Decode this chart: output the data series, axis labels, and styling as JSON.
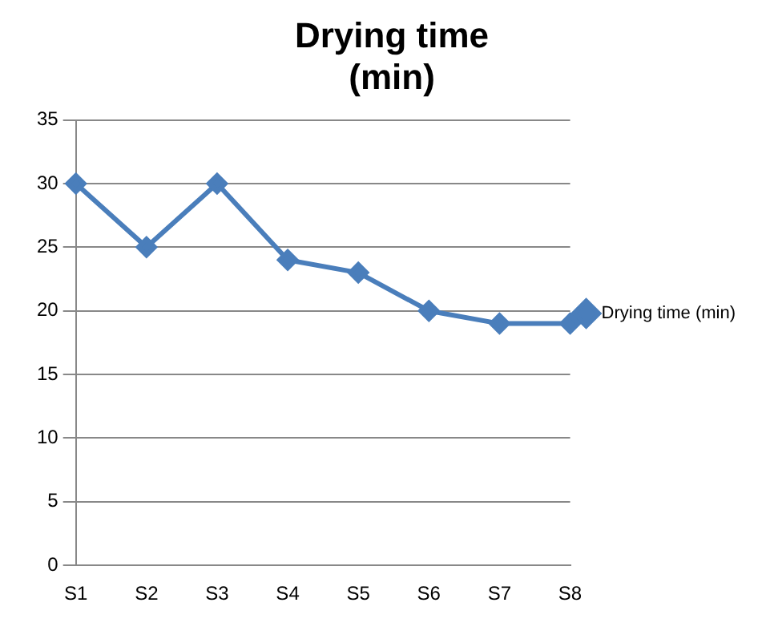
{
  "chart_data": {
    "type": "line",
    "title": "Drying time (min)",
    "categories": [
      "S1",
      "S2",
      "S3",
      "S4",
      "S5",
      "S6",
      "S7",
      "S8"
    ],
    "series": [
      {
        "name": "Drying time (min)",
        "color": "#4a7ebb",
        "values": [
          30,
          25,
          30,
          24,
          23,
          20,
          19,
          19
        ]
      }
    ],
    "ylim": [
      0,
      35
    ],
    "yticks": [
      0,
      5,
      10,
      15,
      20,
      25,
      30,
      35
    ],
    "grid": "y",
    "legend": "right",
    "marker": "diamond",
    "line_style": "solid"
  }
}
